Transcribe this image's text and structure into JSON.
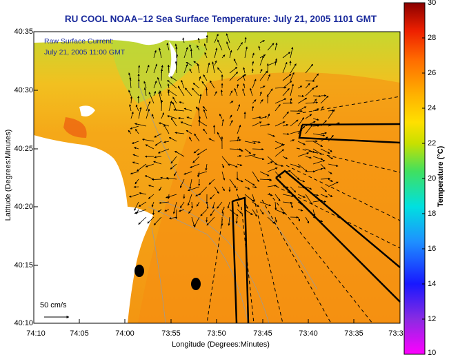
{
  "title": "RU COOL  NOAA−12  Sea Surface Temperature:  July 21, 2005 1101 GMT",
  "legend": {
    "line1": "Raw Surface Current:",
    "line2": "July 21, 2005 11:00 GMT"
  },
  "scale_vector_label": "50 cm/s",
  "axes": {
    "xlabel": "Longitude (Degrees:Minutes)",
    "ylabel": "Latitude (Degrees:Minutes)",
    "lat_ticks": [
      "40:35",
      "40:30",
      "40:25",
      "40:20",
      "40:15",
      "40:10"
    ],
    "lon_ticks": [
      "74:10",
      "74:05",
      "74:00",
      "73:55",
      "73:50",
      "73:45",
      "73:40",
      "73:35",
      "73:3"
    ]
  },
  "colorbar": {
    "label": "Temperature (°C)",
    "ticks": [
      "30",
      "28",
      "26",
      "24",
      "22",
      "20",
      "18",
      "16",
      "14",
      "12",
      "10"
    ],
    "range": [
      10,
      30
    ]
  }
}
